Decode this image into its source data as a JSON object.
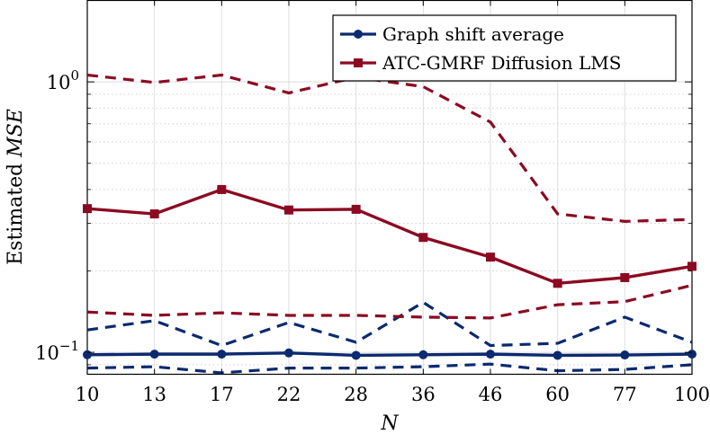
{
  "chart_data": {
    "type": "line",
    "title": "",
    "xlabel": "N",
    "ylabel_prefix": "Estimated ",
    "ylabel_symbol": "MSE",
    "categories": [
      "10",
      "13",
      "17",
      "22",
      "28",
      "36",
      "46",
      "60",
      "77",
      "100"
    ],
    "y_scale": "log",
    "ylim": [
      0.083,
      2.0
    ],
    "y_ticks": [
      {
        "value": 0.1,
        "base": "10",
        "exp": "−1"
      },
      {
        "value": 1.0,
        "base": "10",
        "exp": "0"
      }
    ],
    "grid": true,
    "legend_position": "top-right",
    "series": [
      {
        "name": "Graph shift average",
        "color": "#0b2a6f",
        "marker": "circle",
        "values": [
          0.098,
          0.0985,
          0.0985,
          0.0995,
          0.0975,
          0.098,
          0.0985,
          0.0975,
          0.0978,
          0.0985
        ],
        "upper": [
          0.121,
          0.131,
          0.106,
          0.129,
          0.109,
          0.153,
          0.106,
          0.108,
          0.135,
          0.109
        ],
        "lower": [
          0.0875,
          0.0885,
          0.084,
          0.0875,
          0.0875,
          0.0885,
          0.0905,
          0.0855,
          0.0865,
          0.09
        ]
      },
      {
        "name": "ATC-GMRF Diffusion LMS",
        "color": "#8b0a22",
        "marker": "square",
        "values": [
          0.34,
          0.325,
          0.4,
          0.336,
          0.338,
          0.266,
          0.225,
          0.18,
          0.189,
          0.208
        ],
        "upper": [
          1.06,
          0.995,
          1.06,
          0.91,
          1.04,
          0.96,
          0.71,
          0.325,
          0.305,
          0.31
        ],
        "lower": [
          0.141,
          0.137,
          0.14,
          0.137,
          0.137,
          0.135,
          0.134,
          0.15,
          0.154,
          0.177
        ]
      }
    ]
  }
}
